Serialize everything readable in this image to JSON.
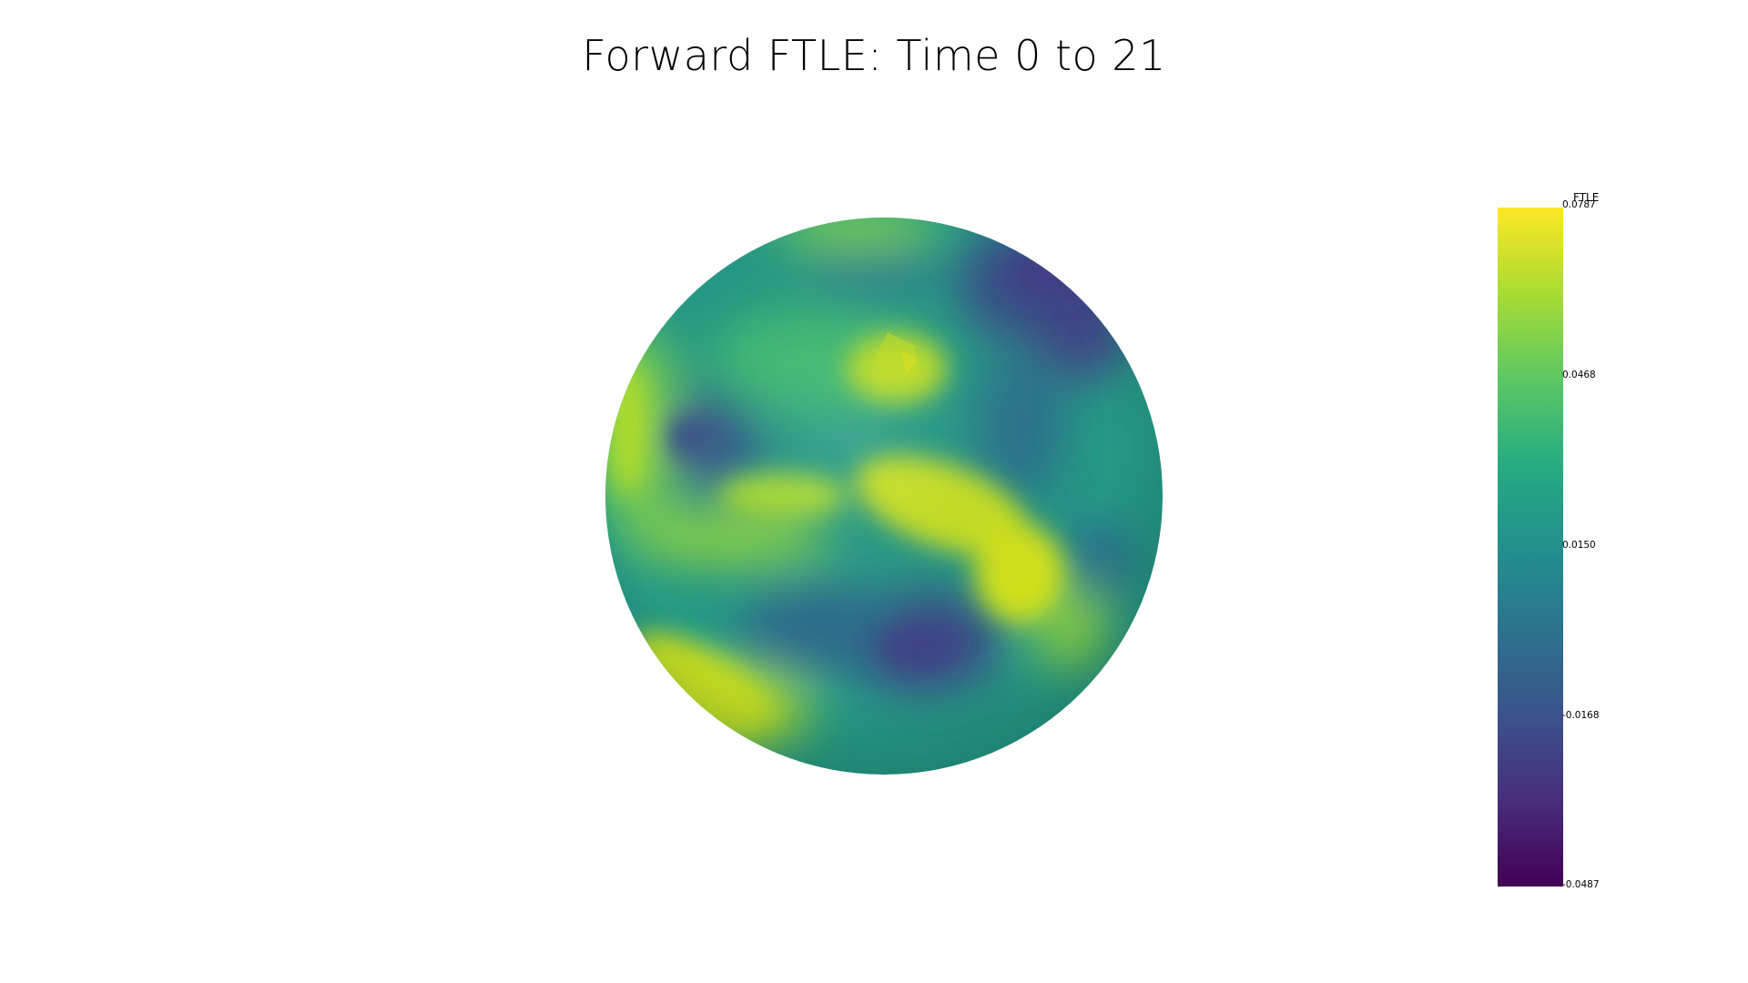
{
  "title": "Forward FTLE: Time 0 to 21",
  "colorbar": {
    "title": "FTLE",
    "colormap": "viridis",
    "min": -0.0487,
    "max": 0.0787,
    "ticks": [
      "0.0787",
      "0.0468",
      "0.0150",
      "-0.0168",
      "-0.0487"
    ],
    "tick_values": [
      0.0787,
      0.0468,
      0.015,
      -0.0168,
      -0.0487
    ]
  },
  "colors": {
    "background": "#ffffff",
    "viridis": [
      "#440154",
      "#3b528b",
      "#21908d",
      "#5dc863",
      "#fde725"
    ]
  }
}
